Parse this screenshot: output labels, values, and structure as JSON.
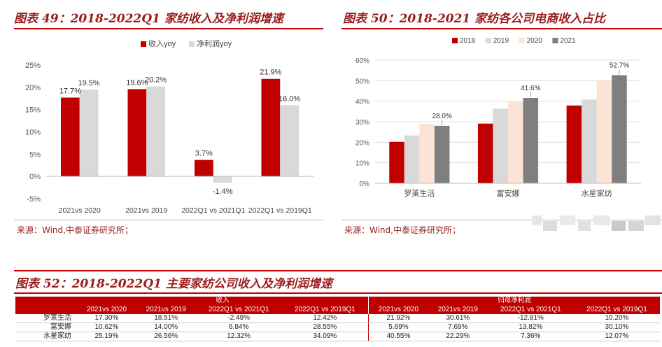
{
  "left_panel": {
    "title": "图表 49：2018-2022Q1 家纺收入及净利润增速",
    "source": "来源：Wind,中泰证券研究所；"
  },
  "right_panel": {
    "title": "图表 50：2018-2021 家纺各公司电商收入占比",
    "source": "来源：Wind,中泰证券研究所；"
  },
  "table_panel": {
    "title": "图表 52：2018-2022Q1 主要家纺公司收入及净利润增速",
    "group_headers": [
      "收入",
      "归母净利润"
    ],
    "column_headers": [
      "2021vs 2020",
      "2021vs 2019",
      "2022Q1 vs 2021Q1",
      "2022Q1 vs 2019Q1",
      "2021vs 2020",
      "2021vs 2019",
      "2022Q1 vs 2021Q1",
      "2022Q1 vs 2019Q1"
    ],
    "rows": [
      {
        "company": "罗莱生活",
        "values": [
          "17.30%",
          "18.51%",
          "-2.49%",
          "12.42%",
          "21.92%",
          "30.61%",
          "-12.81%",
          "10.20%"
        ]
      },
      {
        "company": "富安娜",
        "values": [
          "10.62%",
          "14.00%",
          "6.84%",
          "28.55%",
          "5.69%",
          "7.69%",
          "13.82%",
          "30.10%"
        ]
      },
      {
        "company": "水星家纺",
        "values": [
          "25.19%",
          "26.56%",
          "12.32%",
          "34.09%",
          "40.55%",
          "22.29%",
          "7.36%",
          "12.07%"
        ]
      }
    ]
  },
  "chart_data": [
    {
      "type": "bar",
      "categories": [
        "2021vs 2020",
        "2021vs 2019",
        "2022Q1 vs 2021Q1",
        "2022Q1 vs  2019Q1"
      ],
      "series": [
        {
          "name": "收入yoy",
          "values": [
            17.7,
            19.6,
            3.7,
            21.9
          ],
          "color": "#c00000"
        },
        {
          "name": "净利润yoy",
          "values": [
            19.5,
            20.2,
            -1.4,
            16.0
          ],
          "color": "#d9d9d9"
        }
      ],
      "data_labels": [
        [
          "17.7%",
          "19.6%",
          "3.7%",
          "21.9%"
        ],
        [
          "19.5%",
          "20.2%",
          "-1.4%",
          "16.0%"
        ]
      ],
      "yticks": [
        "-5%",
        "0%",
        "5%",
        "10%",
        "15%",
        "20%",
        "25%"
      ],
      "ylim": [
        -5,
        25
      ],
      "legend": "top"
    },
    {
      "type": "bar",
      "categories": [
        "罗莱生活",
        "富安娜",
        "水星家纺"
      ],
      "series": [
        {
          "name": "2018",
          "values": [
            20.2,
            29.1,
            37.9
          ],
          "color": "#c00000"
        },
        {
          "name": "2019",
          "values": [
            23.3,
            36.3,
            40.8
          ],
          "color": "#d9d9d9"
        },
        {
          "name": "2020",
          "values": [
            29.0,
            39.6,
            50.0
          ],
          "color": "#fbe4d5"
        },
        {
          "name": "2021",
          "values": [
            28.0,
            41.6,
            52.7
          ],
          "color": "#7f7f7f"
        }
      ],
      "data_labels": {
        "series": "2021",
        "labels": [
          "28.0%",
          "41.6%",
          "52.7%"
        ]
      },
      "yticks": [
        "0%",
        "10%",
        "20%",
        "30%",
        "40%",
        "50%",
        "60%"
      ],
      "ylim": [
        0,
        60
      ],
      "legend": "top"
    }
  ]
}
